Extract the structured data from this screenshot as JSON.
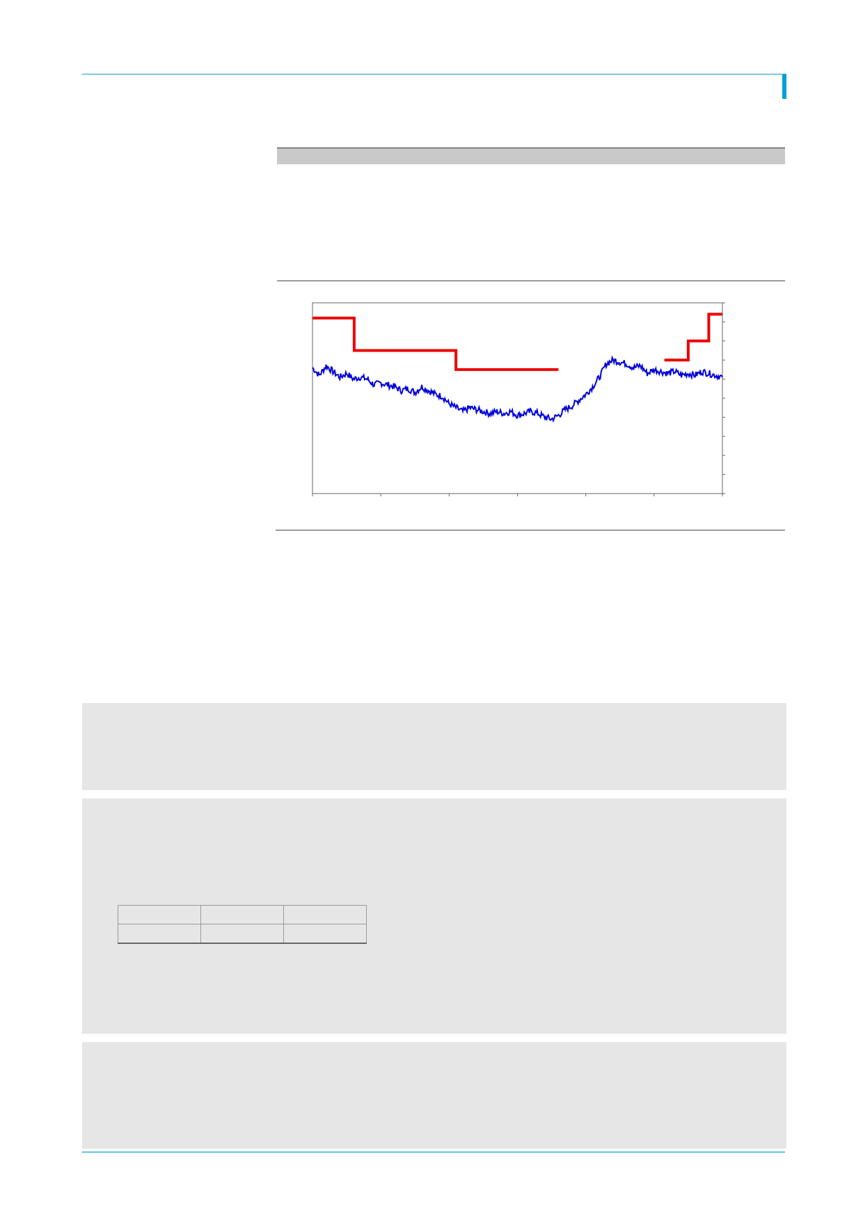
{
  "chart_data": {
    "type": "line",
    "x_ticks": 7,
    "y_ticks": 11,
    "grid": false,
    "series": [
      {
        "color": "#0000dd",
        "x": [
          0,
          1,
          2,
          3,
          4,
          5,
          6,
          7,
          8,
          9,
          10,
          11,
          12,
          13,
          14,
          15,
          16,
          17,
          18,
          19,
          20,
          21,
          22,
          23,
          24,
          25,
          26,
          27,
          28,
          29,
          30,
          31,
          32,
          33,
          34,
          35,
          36,
          37,
          38,
          39,
          40,
          41,
          42,
          43,
          44,
          45,
          46,
          47,
          48,
          49,
          50,
          51,
          52,
          53,
          54,
          55,
          56,
          57,
          58,
          59,
          60
        ],
        "y": [
          6.6,
          6.2,
          6.7,
          6.4,
          6.1,
          6.3,
          6.0,
          6.1,
          6.0,
          5.7,
          5.8,
          5.7,
          5.6,
          5.4,
          5.5,
          5.3,
          5.6,
          5.4,
          5.2,
          5.1,
          4.7,
          4.5,
          4.3,
          4.5,
          4.4,
          4.3,
          4.2,
          4.3,
          4.2,
          4.3,
          4.1,
          4.2,
          4.3,
          4.2,
          4.0,
          3.9,
          4.1,
          4.4,
          4.6,
          4.9,
          5.2,
          5.6,
          6.1,
          6.8,
          7.0,
          6.9,
          6.8,
          6.6,
          6.7,
          6.3,
          6.5,
          6.4,
          6.3,
          6.4,
          6.2,
          6.3,
          6.2,
          6.4,
          6.3,
          6.2,
          6.1
        ],
        "area": "polyline"
      },
      {
        "color": "#ee0000",
        "segments": [
          [
            [
              0,
              9.2
            ],
            [
              6.1,
              9.2
            ],
            [
              6.1,
              7.5
            ],
            [
              21,
              7.5
            ],
            [
              21,
              6.5
            ],
            [
              36,
              6.5
            ]
          ],
          [
            [
              51.5,
              7.0
            ],
            [
              55,
              7.0
            ],
            [
              55,
              8.0
            ],
            [
              58,
              8.0
            ],
            [
              58,
              9.4
            ],
            [
              60,
              9.4
            ]
          ]
        ]
      }
    ],
    "ylim": [
      0,
      10
    ],
    "xlim": [
      0,
      60
    ]
  }
}
